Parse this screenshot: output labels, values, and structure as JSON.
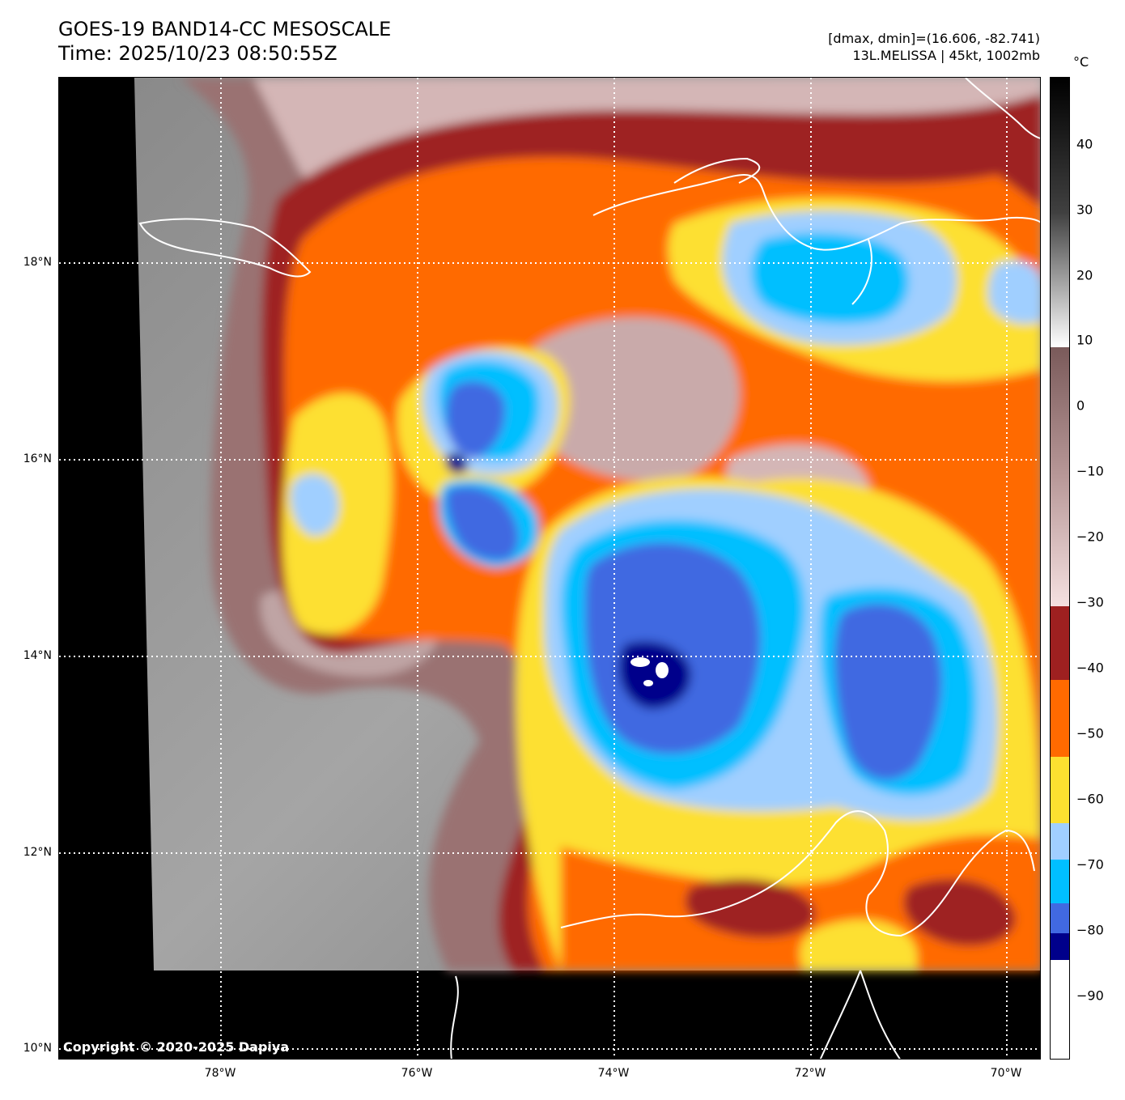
{
  "header": {
    "title_line1": "GOES-19 BAND14-CC MESOSCALE",
    "title_line2": "Time: 2025/10/23 08:50:55Z",
    "info_line1": "[dmax, dmin]=(16.606, -82.741)",
    "info_line2": "13L.MELISSA | 45kt, 1002mb"
  },
  "map": {
    "lat_labels": [
      "18°N",
      "16°N",
      "14°N",
      "12°N",
      "10°N"
    ],
    "lon_labels": [
      "78°W",
      "76°W",
      "74°W",
      "72°W",
      "70°W"
    ],
    "copyright": "Copyright © 2020-2025 Dapiya"
  },
  "colorbar": {
    "unit": "°C",
    "tick_labels": [
      "40",
      "30",
      "20",
      "10",
      "0",
      "−10",
      "−20",
      "−30",
      "−40",
      "−50",
      "−60",
      "−70",
      "−80",
      "−90"
    ]
  },
  "colors": {
    "deep_convection": "#00008b",
    "very_cold": "#4169e1",
    "cold": "#00bfff",
    "cool": "#a0cfff",
    "yellow": "#fde030",
    "orange": "#ff6a00",
    "dark_red": "#9e2020",
    "warm_pink": "#d9bcbc",
    "brown": "#8a6464",
    "gray": "#8c8c8c"
  }
}
